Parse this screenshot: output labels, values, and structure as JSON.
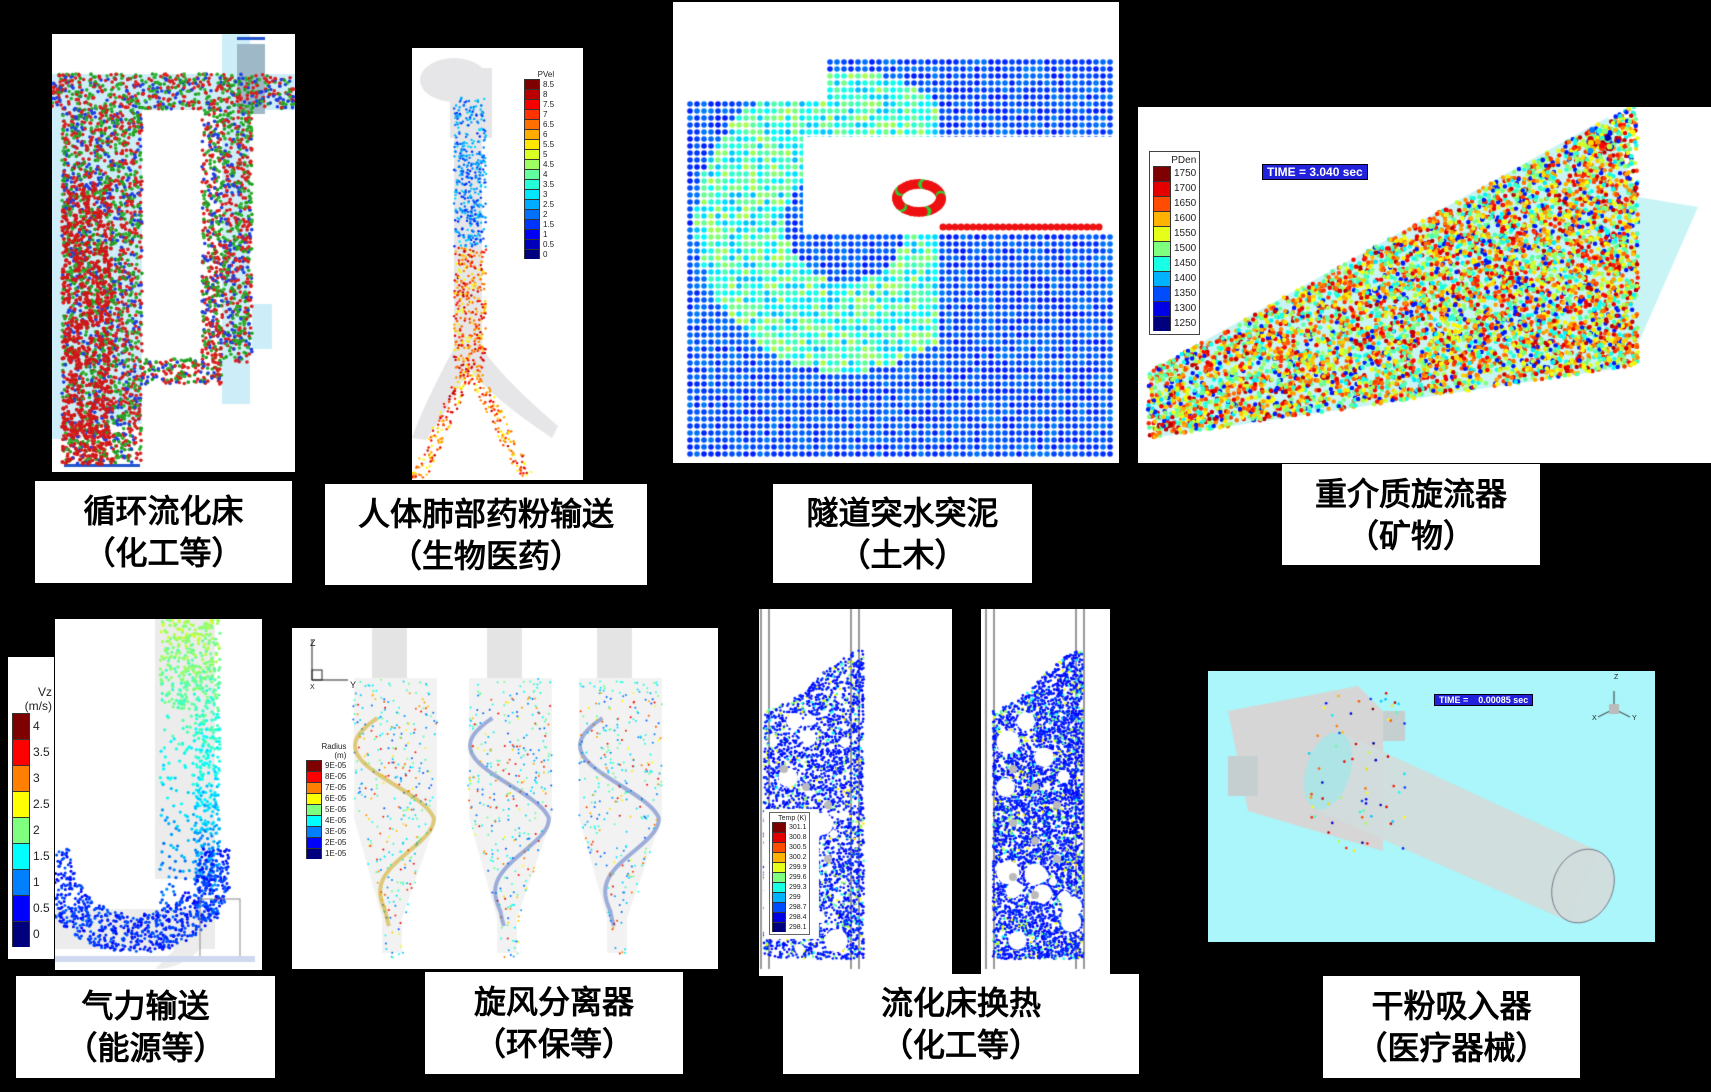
{
  "panels": [
    {
      "id": "cfb",
      "caption": [
        "循环流化床",
        "（化工等）"
      ]
    },
    {
      "id": "lung",
      "caption": [
        "人体肺部药粉输送",
        "（生物医药）"
      ],
      "legend": {
        "title": "PVel",
        "labels": [
          "8.5",
          "8",
          "7.5",
          "7",
          "6.5",
          "6",
          "5.5",
          "5",
          "4.5",
          "4",
          "3.5",
          "3",
          "2.5",
          "2",
          "1.5",
          "1",
          "0.5",
          "0"
        ]
      }
    },
    {
      "id": "tunnel",
      "caption": [
        "隧道突水突泥",
        "（土木）"
      ]
    },
    {
      "id": "hydrocyclone",
      "caption": [
        "重介质旋流器",
        "（矿物）"
      ],
      "legend": {
        "title": "PDen",
        "labels": [
          "1750",
          "1700",
          "1650",
          "1600",
          "1550",
          "1500",
          "1450",
          "1400",
          "1350",
          "1300",
          "1250"
        ]
      },
      "time": "TIME =  3.040 sec"
    },
    {
      "id": "pneumatic",
      "caption": [
        "气力输送",
        "（能源等）"
      ],
      "legend": {
        "title": "Vz",
        "unit": "(m/s)",
        "labels": [
          "4",
          "3.5",
          "3",
          "2.5",
          "2",
          "1.5",
          "1",
          "0.5",
          "0"
        ]
      }
    },
    {
      "id": "cyclone",
      "caption": [
        "旋风分离器",
        "（环保等）"
      ],
      "legend": {
        "title": "Radius",
        "unit": "(m)",
        "labels": [
          "9E-05",
          "8E-05",
          "7E-05",
          "6E-05",
          "5E-05",
          "4E-05",
          "3E-05",
          "2E-05",
          "1E-05"
        ]
      },
      "axes": {
        "z": "Z",
        "y": "Y",
        "x": "X"
      }
    },
    {
      "id": "fluidbed",
      "caption": [
        "流化床换热",
        "（化工等）"
      ],
      "legend": {
        "title": "Temp (K)",
        "labels": [
          "301.1",
          "300.8",
          "300.5",
          "300.2",
          "299.9",
          "299.6",
          "299.3",
          "299",
          "298.7",
          "298.4",
          "298.1"
        ]
      }
    },
    {
      "id": "inhaler",
      "caption": [
        "干粉吸入器",
        "（医疗器械）"
      ],
      "time": "TIME =    0.00085 sec",
      "axes": {
        "z": "Z",
        "y": "Y",
        "x": "X"
      }
    }
  ],
  "colors": {
    "background": "#000000",
    "caption_bg": "#ffffff",
    "time_box": "#2222dd",
    "inhaler_bg": "#aaf6fa"
  }
}
